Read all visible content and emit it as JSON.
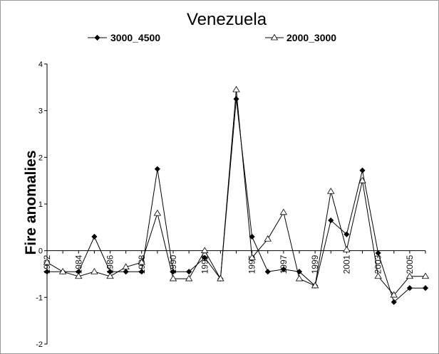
{
  "chart_data": {
    "type": "line",
    "title": "Venezuela",
    "xlabel": "",
    "ylabel": "Fire anomalies",
    "xlim": [
      1982,
      2006
    ],
    "ylim": [
      -2,
      4
    ],
    "x_tick_labels": [
      "1982",
      "1984",
      "1986",
      "1988",
      "1990",
      "1992",
      "1995",
      "1997",
      "1999",
      "2001",
      "2003",
      "2005"
    ],
    "y_ticks": [
      -2,
      -1,
      0,
      1,
      2,
      3,
      4
    ],
    "legend_position": "top",
    "grid": false,
    "x": [
      1982,
      1983,
      1984,
      1985,
      1986,
      1987,
      1988,
      1989,
      1990,
      1991,
      1992,
      1993,
      1994,
      1995,
      1996,
      1997,
      1998,
      1999,
      2000,
      2001,
      2002,
      2003,
      2004,
      2005,
      2006
    ],
    "series": [
      {
        "name": "3000_4500",
        "marker": "filled-diamond",
        "color": "#000000",
        "values": [
          -0.45,
          -0.45,
          -0.45,
          0.3,
          -0.45,
          -0.45,
          -0.45,
          1.75,
          -0.45,
          -0.45,
          -0.15,
          -0.6,
          3.25,
          0.3,
          -0.45,
          -0.4,
          -0.45,
          -0.75,
          0.65,
          0.35,
          1.72,
          -0.05,
          -1.1,
          -0.8,
          -0.8
        ]
      },
      {
        "name": "2000_3000",
        "marker": "hollow-triangle",
        "color": "#000000",
        "values": [
          -0.25,
          -0.45,
          -0.55,
          -0.45,
          -0.55,
          -0.35,
          -0.25,
          0.8,
          -0.6,
          -0.6,
          0.0,
          -0.6,
          3.45,
          -0.15,
          0.25,
          0.82,
          -0.6,
          -0.75,
          1.27,
          0.02,
          1.5,
          -0.55,
          -0.95,
          -0.55,
          -0.55
        ]
      }
    ]
  }
}
